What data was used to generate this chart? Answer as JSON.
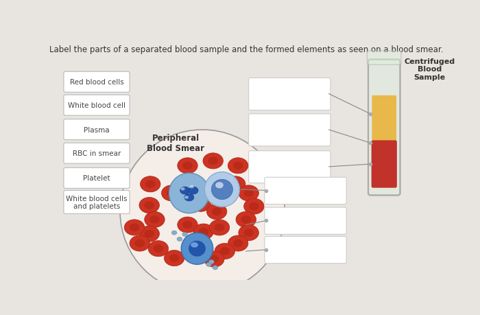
{
  "title": "Label the parts of a separated blood sample and the formed elements as seen on a blood smear.",
  "background_color": "#e8e4df",
  "title_fontsize": 8.5,
  "left_labels": [
    "Red blood cells",
    "White blood cell",
    "Plasma",
    "RBC in smear",
    "Platelet",
    "White blood cells\nand platelets"
  ],
  "tube_label": "Centrifuged\nBlood\nSample",
  "peripheral_label": "Peripheral\nBlood Smear",
  "plasma_color": "#e8b84b",
  "rbc_color": "#c0322a",
  "circle_bg": "#f5ede8"
}
